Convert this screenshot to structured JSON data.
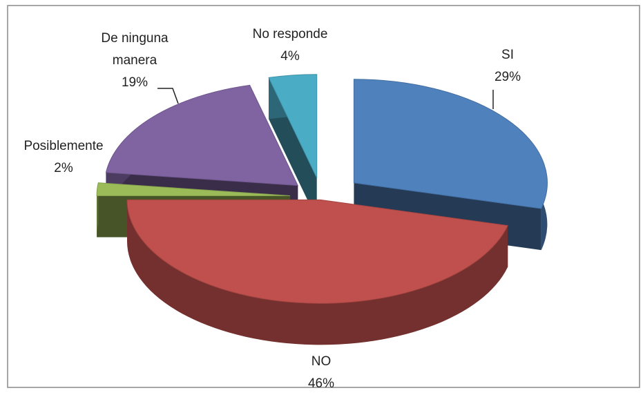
{
  "chart_data": {
    "type": "pie3d",
    "categories": [
      "SI",
      "NO",
      "Posiblemente",
      "De ninguna manera",
      "No responde"
    ],
    "values": [
      29,
      46,
      2,
      19,
      4
    ],
    "value_labels": [
      "29%",
      "46%",
      "2%",
      "19%",
      "4%"
    ],
    "colors": [
      "#4f81bd",
      "#c0504d",
      "#9bbb59",
      "#8064a2",
      "#4bacc6"
    ]
  }
}
